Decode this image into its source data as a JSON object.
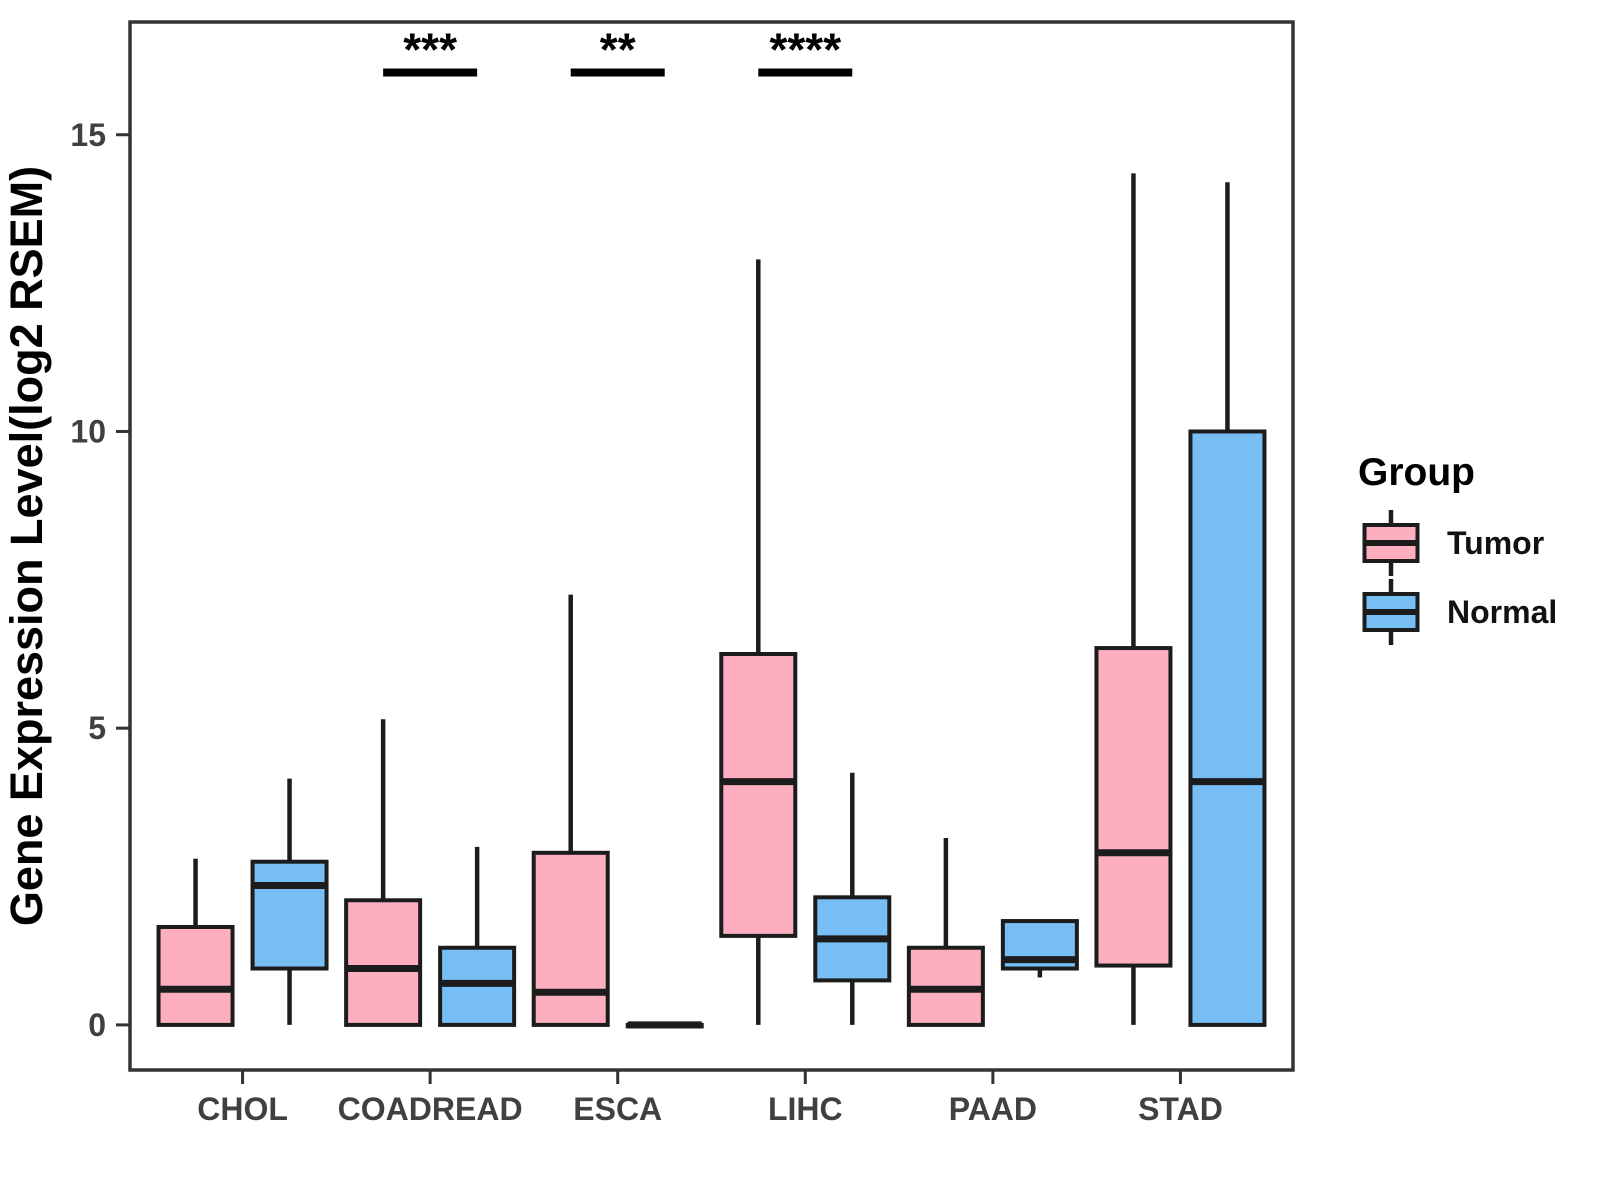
{
  "chart_data": {
    "type": "boxplot",
    "title": "",
    "xlabel": "",
    "ylabel": "Gene Expression Level(log2 RSEM)",
    "ylim": [
      -0.76,
      16.9
    ],
    "yticks": [
      {
        "value": 0,
        "label": "0"
      },
      {
        "value": 5,
        "label": "5"
      },
      {
        "value": 10,
        "label": "10"
      },
      {
        "value": 15,
        "label": "15"
      }
    ],
    "grid": "off",
    "categories": [
      "CHOL",
      "COADREAD",
      "ESCA",
      "LIHC",
      "PAAD",
      "STAD"
    ],
    "legend": {
      "title": "Group",
      "position": "right",
      "entries": [
        {
          "label": "Tumor",
          "color": "#FDAFC0"
        },
        {
          "label": "Normal",
          "color": "#76BEF3"
        }
      ]
    },
    "series": [
      {
        "name": "Tumor",
        "color": "#FDAFC0",
        "boxes": [
          {
            "category": "CHOL",
            "whisker_low": 0,
            "q1": 0,
            "median": 0.6,
            "q3": 1.65,
            "whisker_high": 2.8
          },
          {
            "category": "COADREAD",
            "whisker_low": 0,
            "q1": 0,
            "median": 0.95,
            "q3": 2.1,
            "whisker_high": 5.15
          },
          {
            "category": "ESCA",
            "whisker_low": 0,
            "q1": 0,
            "median": 0.55,
            "q3": 2.9,
            "whisker_high": 7.25
          },
          {
            "category": "LIHC",
            "whisker_low": 0,
            "q1": 1.5,
            "median": 4.1,
            "q3": 6.25,
            "whisker_high": 12.9
          },
          {
            "category": "PAAD",
            "whisker_low": 0,
            "q1": 0,
            "median": 0.6,
            "q3": 1.3,
            "whisker_high": 3.15
          },
          {
            "category": "STAD",
            "whisker_low": 0,
            "q1": 1.0,
            "median": 2.9,
            "q3": 6.35,
            "whisker_high": 14.35
          }
        ]
      },
      {
        "name": "Normal",
        "color": "#76BEF3",
        "boxes": [
          {
            "category": "CHOL",
            "whisker_low": 0,
            "q1": 0.95,
            "median": 2.35,
            "q3": 2.75,
            "whisker_high": 4.15
          },
          {
            "category": "COADREAD",
            "whisker_low": 0,
            "q1": 0,
            "median": 0.7,
            "q3": 1.3,
            "whisker_high": 3.0
          },
          {
            "category": "ESCA",
            "whisker_low": 0,
            "q1": 0,
            "median": 0,
            "q3": 0,
            "whisker_high": 0
          },
          {
            "category": "LIHC",
            "whisker_low": 0,
            "q1": 0.75,
            "median": 1.45,
            "q3": 2.15,
            "whisker_high": 4.25
          },
          {
            "category": "PAAD",
            "whisker_low": 0.8,
            "q1": 0.95,
            "median": 1.1,
            "q3": 1.75,
            "whisker_high": 1.75
          },
          {
            "category": "STAD",
            "whisker_low": 0,
            "q1": 0,
            "median": 4.1,
            "q3": 10.0,
            "whisker_high": 14.2
          }
        ]
      }
    ],
    "significance": [
      {
        "category": "COADREAD",
        "label": "***",
        "bar_y": 16.05
      },
      {
        "category": "ESCA",
        "label": "**",
        "bar_y": 16.05
      },
      {
        "category": "LIHC",
        "label": "****",
        "bar_y": 16.05
      }
    ],
    "colors": {
      "box_stroke": "#1C1C1C",
      "panel_border": "#333333",
      "tick_label": "#404040",
      "axis_title": "#000000",
      "legend_text": "#111111",
      "significance": "#000000",
      "background": "#ffffff"
    }
  }
}
